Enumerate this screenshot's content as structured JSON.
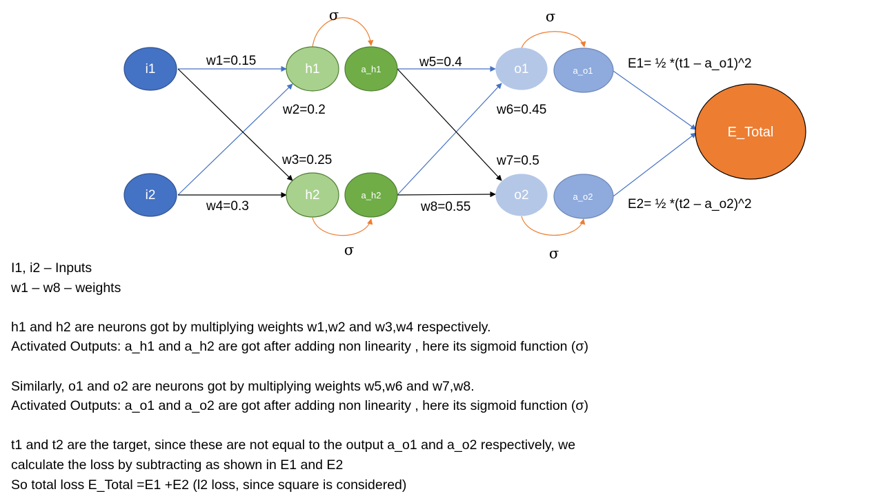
{
  "colors": {
    "input": "#4472c4",
    "input_stroke": "#2f528f",
    "hidden": "#a9d18e",
    "hidden_act": "#70ad47",
    "hidden_stroke": "#507e32",
    "output": "#b4c7e7",
    "output_act": "#8faadc",
    "output_stroke": "#6c86b8",
    "total": "#ed7d31",
    "total_stroke": "#000000",
    "edge_blue": "#4472c4",
    "edge_black": "#000000",
    "sigma_arc": "#ed7d31"
  },
  "nodes": {
    "i1": "i1",
    "i2": "i2",
    "h1": "h1",
    "h2": "h2",
    "a_h1": "a_h1",
    "a_h2": "a_h2",
    "o1": "o1",
    "o2": "o2",
    "a_o1": "a_o1",
    "a_o2": "a_o2",
    "e_total": "E_Total"
  },
  "weights": {
    "w1": "w1=0.15",
    "w2": "w2=0.2",
    "w3": "w3=0.25",
    "w4": "w4=0.3",
    "w5": "w5=0.4",
    "w6": "w6=0.45",
    "w7": "w7=0.5",
    "w8": "w8=0.55"
  },
  "sigma": "σ",
  "errors": {
    "e1": "E1= ½ *(t1 – a_o1)^2",
    "e2": "E2= ½ *(t2 – a_o2)^2"
  },
  "notes": [
    "I1, i2 – Inputs",
    "w1 – w8 – weights",
    "",
    "h1 and h2 are neurons got by multiplying weights w1,w2 and w3,w4 respectively.",
    "Activated Outputs: a_h1 and a_h2 are got after adding non linearity , here its sigmoid function (σ)",
    "",
    "Similarly, o1 and o2 are neurons got by multiplying weights w5,w6 and w7,w8.",
    "Activated Outputs: a_o1 and a_o2 are got after adding non linearity , here its sigmoid function (σ)",
    "",
    "t1 and t2 are the target, since these are not equal to the output a_o1 and a_o2 respectively, we",
    "calculate the loss by subtracting as shown in E1 and E2",
    "So total loss E_Total =E1 +E2 (l2 loss, since square is considered)"
  ]
}
